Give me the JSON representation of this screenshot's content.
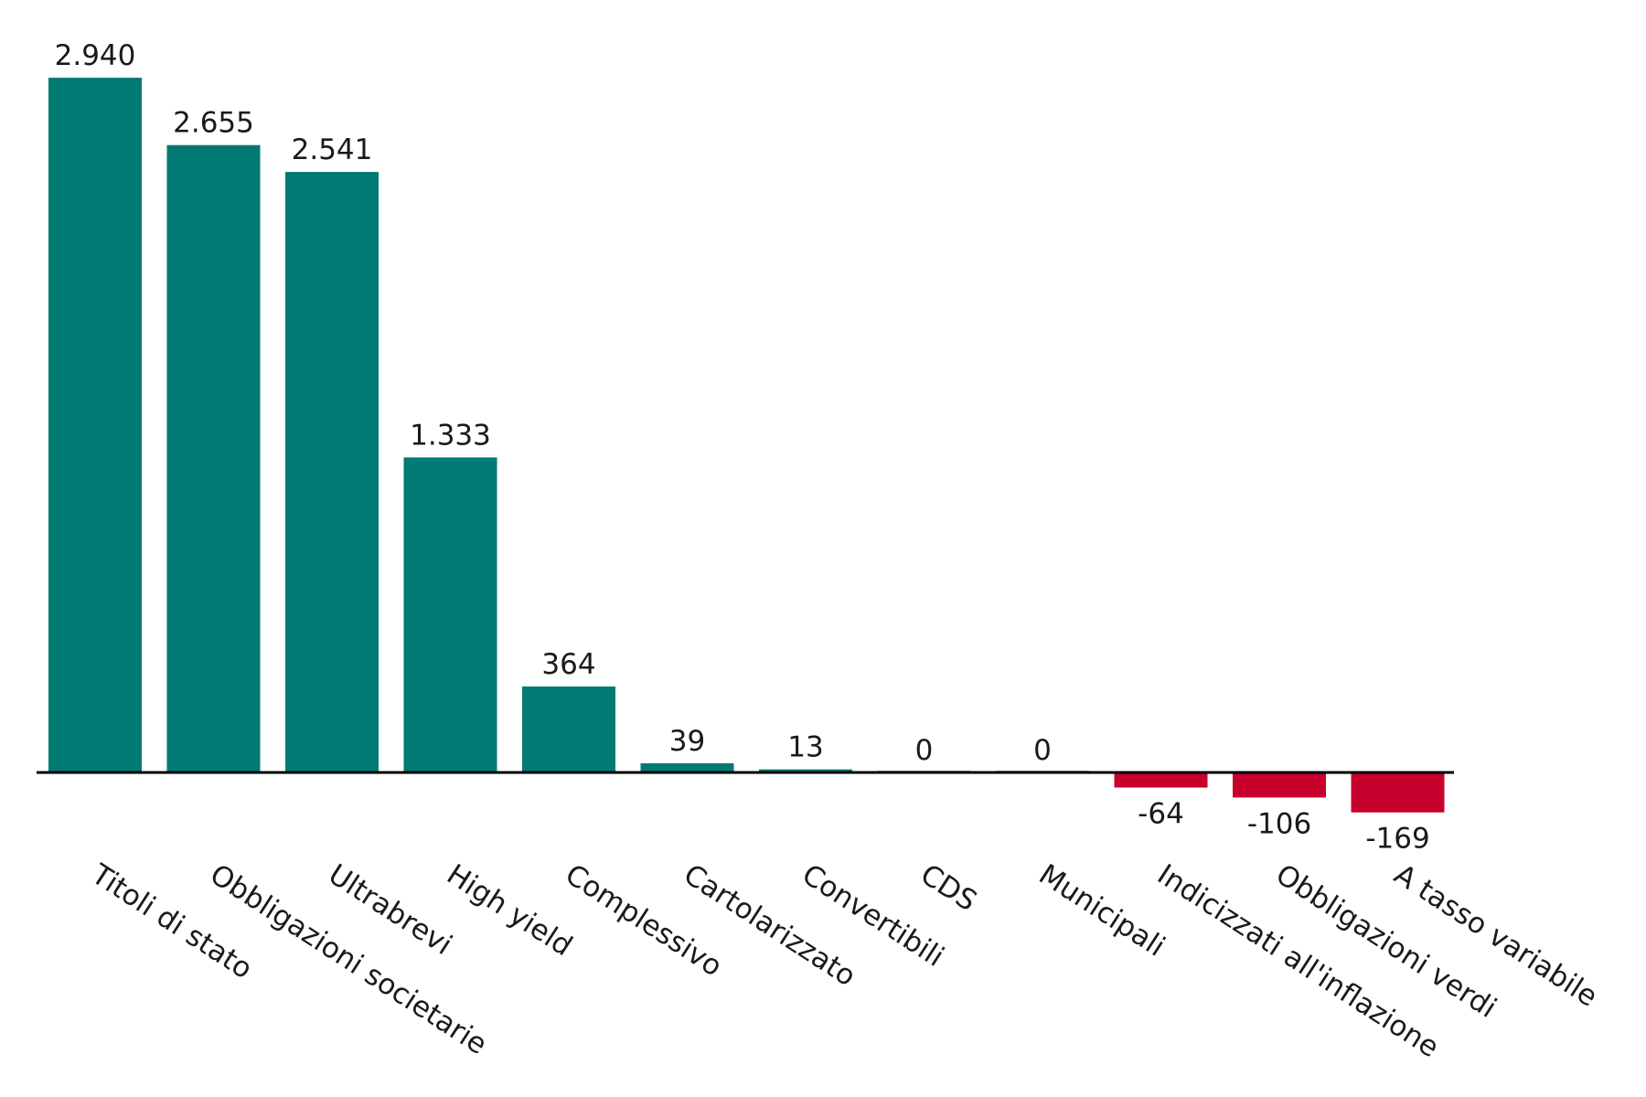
{
  "chart_data": {
    "type": "bar",
    "title": "",
    "xlabel": "",
    "ylabel": "",
    "categories": [
      "Titoli di stato",
      "Obbligazioni societarie",
      "Ultrabrevi",
      "High yield",
      "Complessivo",
      "Cartolarizzato",
      "Convertibili",
      "CDS",
      "Municipali",
      "Indicizzati all'inflazione",
      "Obbligazioni verdi",
      "A tasso variabile"
    ],
    "values": [
      2940,
      2655,
      2541,
      1333,
      364,
      39,
      13,
      0,
      0,
      -64,
      -106,
      -169
    ],
    "value_labels": [
      "2.940",
      "2.655",
      "2.541",
      "1.333",
      "364",
      "39",
      "13",
      "0",
      "0",
      "-64",
      "-106",
      "-169"
    ],
    "ylim": [
      -200,
      3000
    ],
    "grid": false,
    "legend": "none",
    "colors": {
      "positive": "#007A73",
      "negative": "#C8002D",
      "zero": "#9aa0a0",
      "axis": "#000000"
    }
  }
}
